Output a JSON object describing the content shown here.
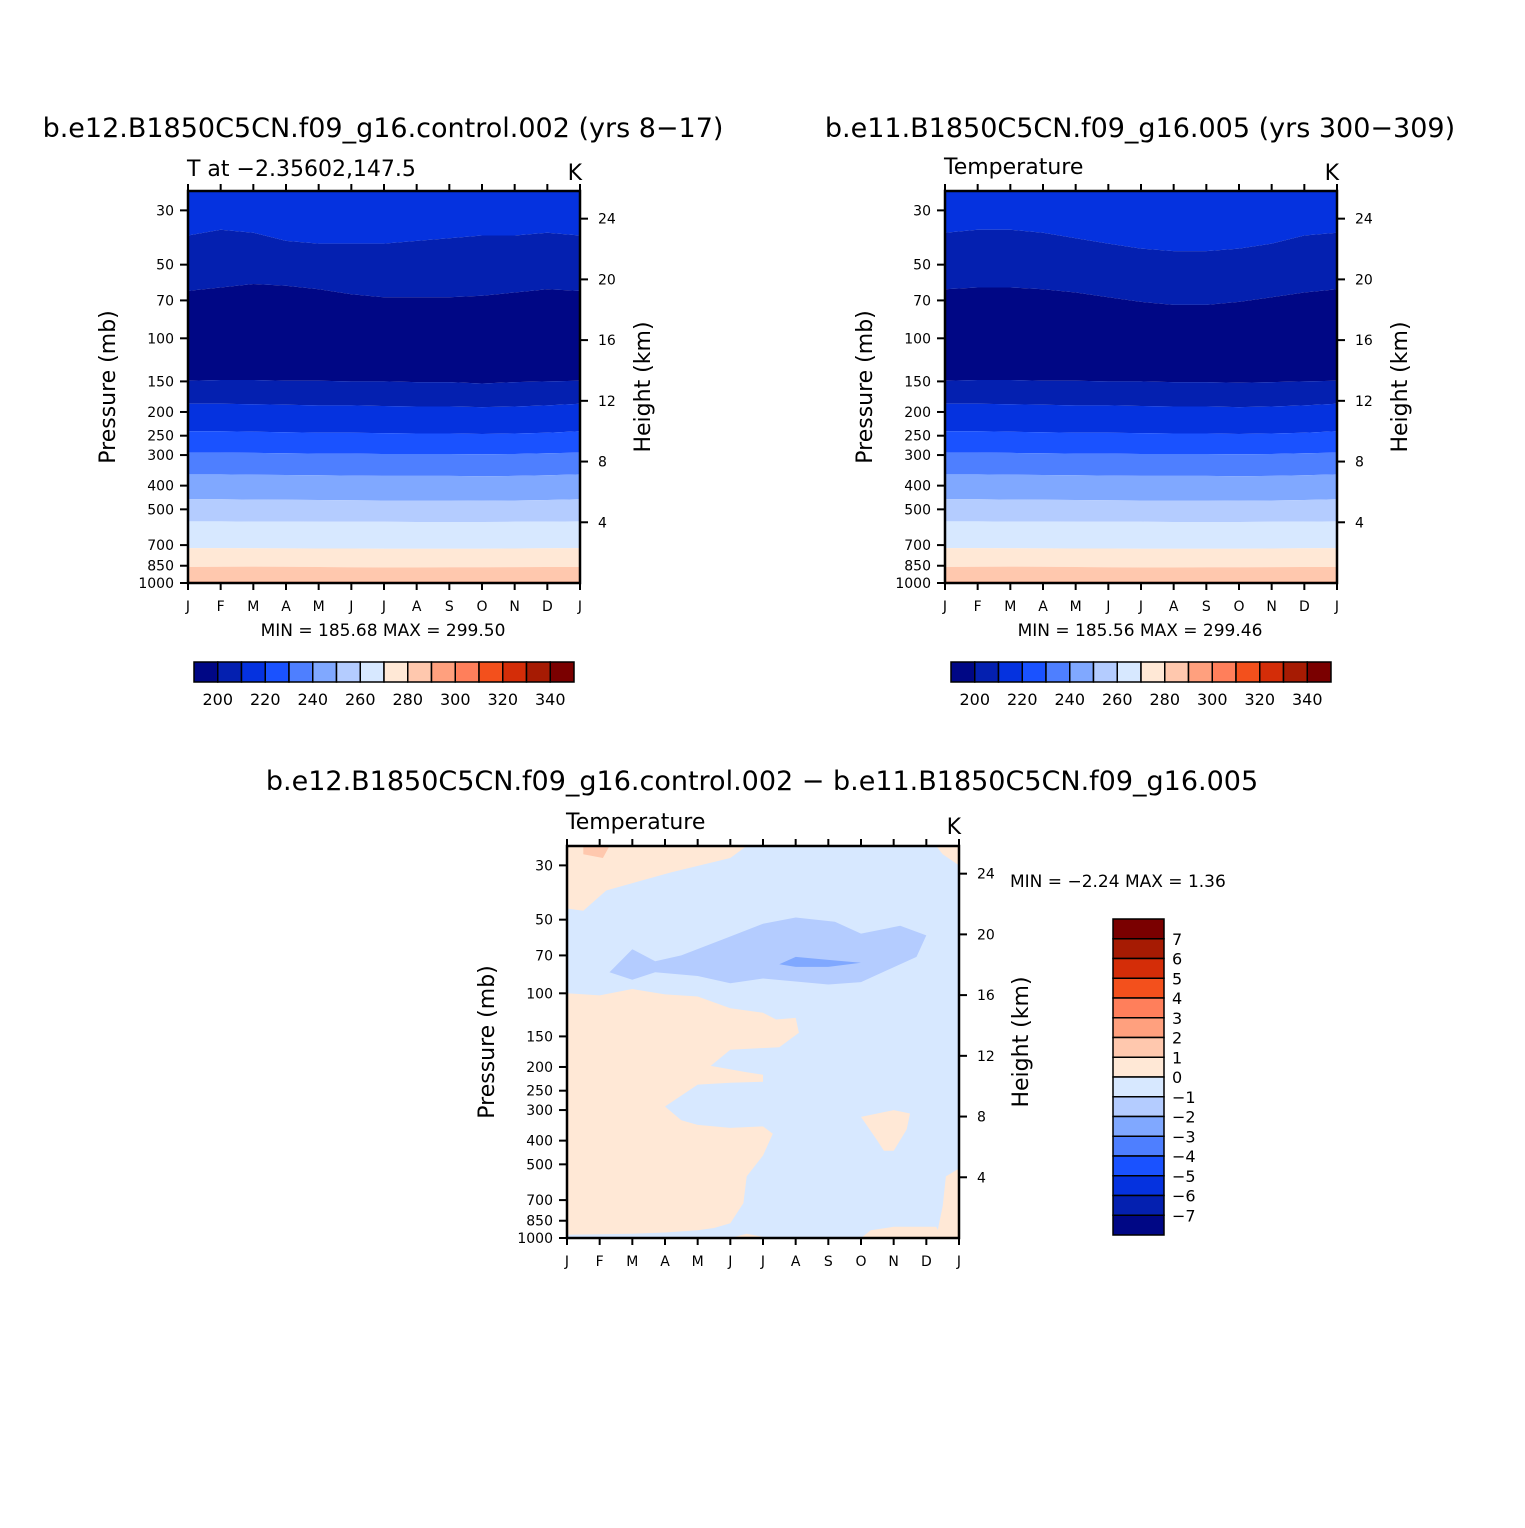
{
  "chart_data": [
    {
      "type": "heatmap",
      "title": "b.e12.B1850C5CN.f09_g16.control.002 (yrs 8-17)",
      "left_subtitle": "T at -2.35602,147.5",
      "units": "K",
      "xlabel": "",
      "ylabel": "Pressure (mb)",
      "right_ylabel": "Height (km)",
      "months": [
        "J",
        "F",
        "M",
        "A",
        "M",
        "J",
        "J",
        "A",
        "S",
        "O",
        "N",
        "D",
        "J"
      ],
      "pressure_ticks": [
        30,
        50,
        70,
        100,
        150,
        200,
        250,
        300,
        400,
        500,
        700,
        850,
        1000
      ],
      "height_ticks": [
        24,
        20,
        16,
        12,
        8,
        4
      ],
      "ylim": [
        1000,
        25
      ],
      "contour_levels": [
        195,
        200,
        205,
        210,
        215,
        220,
        225,
        230,
        235,
        240,
        245,
        250,
        255,
        260,
        265,
        270,
        275,
        280,
        285,
        290,
        295
      ],
      "band_boundaries_mb": [
        [
          38,
          36,
          37,
          40,
          41,
          41,
          41,
          40,
          39,
          38,
          38,
          37,
          38
        ],
        [
          64,
          62,
          60,
          61,
          63,
          66,
          68,
          68,
          68,
          67,
          65,
          63,
          64
        ],
        [
          149,
          148,
          148,
          149,
          149,
          150,
          150,
          151,
          151,
          153,
          151,
          150,
          149
        ],
        [
          185,
          185,
          186,
          187,
          188,
          188,
          189,
          190,
          190,
          191,
          190,
          188,
          185
        ],
        [
          240,
          240,
          241,
          242,
          243,
          243,
          244,
          245,
          245,
          246,
          245,
          243,
          240
        ],
        [
          293,
          293,
          294,
          295,
          296,
          296,
          297,
          297,
          297,
          298,
          297,
          295,
          293
        ],
        [
          360,
          360,
          361,
          362,
          363,
          364,
          365,
          365,
          365,
          366,
          365,
          363,
          360
        ],
        [
          455,
          455,
          456,
          457,
          458,
          459,
          460,
          460,
          460,
          461,
          460,
          458,
          455
        ],
        [
          560,
          560,
          561,
          561,
          562,
          562,
          562,
          563,
          563,
          563,
          562,
          561,
          560
        ],
        [
          720,
          720,
          721,
          722,
          723,
          723,
          724,
          724,
          724,
          724,
          723,
          721,
          720
        ],
        [
          860,
          858,
          857,
          858,
          860,
          862,
          864,
          864,
          863,
          862,
          861,
          860,
          860
        ],
        [
          985,
          985,
          985,
          985,
          985,
          985,
          985,
          985,
          985,
          985,
          985,
          985,
          985
        ]
      ],
      "band_colors": [
        "#0532df",
        "#0420b0",
        "#000785",
        "#0420b0",
        "#0532df",
        "#1a52ff",
        "#4e7fff",
        "#80a8ff",
        "#b4ccff",
        "#d7e8ff",
        "#ffe8d6",
        "#ffc8ae",
        "#ffa07e",
        "#ff7f5b"
      ],
      "stats": "MIN = 185.68 MAX = 299.50",
      "colorbar": {
        "labels": [
          "200",
          "220",
          "240",
          "260",
          "280",
          "300",
          "320",
          "340"
        ],
        "colors": [
          "#000785",
          "#0420b0",
          "#0532df",
          "#1a52ff",
          "#4e7fff",
          "#80a8ff",
          "#b4ccff",
          "#d7e8ff",
          "#ffe8d6",
          "#ffc8ae",
          "#ffa07e",
          "#ff7f5b",
          "#f3501c",
          "#d42d08",
          "#a61b03",
          "#7a0000"
        ]
      }
    },
    {
      "type": "heatmap",
      "title": "b.e11.B1850C5CN.f09_g16.005 (yrs 300-309)",
      "left_subtitle": "Temperature",
      "units": "K",
      "xlabel": "",
      "ylabel": "Pressure (mb)",
      "right_ylabel": "Height (km)",
      "months": [
        "J",
        "F",
        "M",
        "A",
        "M",
        "J",
        "J",
        "A",
        "S",
        "O",
        "N",
        "D",
        "J"
      ],
      "pressure_ticks": [
        30,
        50,
        70,
        100,
        150,
        200,
        250,
        300,
        400,
        500,
        700,
        850,
        1000
      ],
      "height_ticks": [
        24,
        20,
        16,
        12,
        8,
        4
      ],
      "ylim": [
        1000,
        25
      ],
      "contour_levels": [
        195,
        200,
        205,
        210,
        215,
        220,
        225,
        230,
        235,
        240,
        245,
        250,
        255,
        260,
        265,
        270,
        275,
        280,
        285,
        290,
        295
      ],
      "band_boundaries_mb": [
        [
          37,
          36,
          36,
          37,
          39,
          41,
          43,
          44,
          44,
          43,
          41,
          38,
          37
        ],
        [
          63,
          62,
          62,
          63,
          65,
          68,
          71,
          73,
          73,
          71,
          68,
          65,
          63
        ],
        [
          149,
          148,
          148,
          149,
          149,
          150,
          150,
          151,
          151,
          152,
          151,
          150,
          149
        ],
        [
          185,
          185,
          186,
          187,
          188,
          188,
          189,
          190,
          190,
          191,
          190,
          188,
          185
        ],
        [
          240,
          240,
          241,
          242,
          243,
          243,
          244,
          245,
          245,
          246,
          245,
          243,
          240
        ],
        [
          293,
          293,
          294,
          295,
          296,
          296,
          297,
          297,
          297,
          298,
          297,
          295,
          293
        ],
        [
          360,
          360,
          361,
          362,
          363,
          364,
          365,
          365,
          365,
          366,
          365,
          363,
          360
        ],
        [
          455,
          455,
          456,
          457,
          458,
          459,
          460,
          460,
          460,
          461,
          460,
          458,
          455
        ],
        [
          560,
          560,
          561,
          561,
          562,
          562,
          562,
          563,
          563,
          563,
          562,
          561,
          560
        ],
        [
          720,
          720,
          721,
          722,
          723,
          723,
          724,
          724,
          724,
          724,
          723,
          721,
          720
        ],
        [
          860,
          858,
          857,
          858,
          860,
          862,
          864,
          864,
          863,
          862,
          861,
          860,
          860
        ],
        [
          985,
          985,
          985,
          985,
          985,
          985,
          985,
          985,
          985,
          985,
          985,
          985,
          985
        ]
      ],
      "band_colors": [
        "#0532df",
        "#0420b0",
        "#000785",
        "#0420b0",
        "#0532df",
        "#1a52ff",
        "#4e7fff",
        "#80a8ff",
        "#b4ccff",
        "#d7e8ff",
        "#ffe8d6",
        "#ffc8ae",
        "#ffa07e",
        "#ff7f5b"
      ],
      "stats": "MIN = 185.56 MAX = 299.46",
      "colorbar": {
        "labels": [
          "200",
          "220",
          "240",
          "260",
          "280",
          "300",
          "320",
          "340"
        ],
        "colors": [
          "#000785",
          "#0420b0",
          "#0532df",
          "#1a52ff",
          "#4e7fff",
          "#80a8ff",
          "#b4ccff",
          "#d7e8ff",
          "#ffe8d6",
          "#ffc8ae",
          "#ffa07e",
          "#ff7f5b",
          "#f3501c",
          "#d42d08",
          "#a61b03",
          "#7a0000"
        ]
      }
    },
    {
      "type": "heatmap",
      "title": "b.e12.B1850C5CN.f09_g16.control.002 - b.e11.B1850C5CN.f09_g16.005",
      "left_subtitle": "Temperature",
      "units": "K",
      "xlabel": "",
      "ylabel": "Pressure (mb)",
      "right_ylabel": "Height (km)",
      "months": [
        "J",
        "F",
        "M",
        "A",
        "M",
        "J",
        "J",
        "A",
        "S",
        "O",
        "N",
        "D",
        "J"
      ],
      "pressure_ticks": [
        30,
        50,
        70,
        100,
        150,
        200,
        250,
        300,
        400,
        500,
        700,
        850,
        1000
      ],
      "height_ticks": [
        24,
        20,
        16,
        12,
        8,
        4
      ],
      "ylim": [
        1000,
        25
      ],
      "contour_levels": [
        -7,
        -6,
        -5,
        -4,
        -3,
        -2,
        -1,
        0,
        1,
        2,
        3,
        4,
        5,
        6,
        7
      ],
      "background_color": "#d7e8ff",
      "regions": [
        {
          "level_range": [
            0,
            1
          ],
          "color": "#ffe8d6",
          "points": [
            [
              0.0,
              25
            ],
            [
              11.3,
              25
            ],
            [
              11.5,
              27
            ],
            [
              12.0,
              30
            ],
            [
              12.0,
              25
            ]
          ]
        },
        {
          "level_range": [
            0,
            1
          ],
          "color": "#ffe8d6",
          "points": [
            [
              0.0,
              25
            ],
            [
              0.0,
              45
            ],
            [
              0.5,
              46
            ],
            [
              1.2,
              38
            ],
            [
              3.2,
              32
            ],
            [
              5.0,
              28
            ],
            [
              5.5,
              25
            ]
          ]
        },
        {
          "level_range": [
            1,
            2
          ],
          "color": "#ffc8ae",
          "points": [
            [
              0.5,
              25
            ],
            [
              0.5,
              27
            ],
            [
              1.1,
              28
            ],
            [
              1.3,
              25
            ]
          ]
        },
        {
          "level_range": [
            -2,
            -1
          ],
          "color": "#b4ccff",
          "points": [
            [
              1.3,
              82
            ],
            [
              2.0,
              66
            ],
            [
              2.7,
              74
            ],
            [
              3.5,
              70
            ],
            [
              4.8,
              60
            ],
            [
              6.0,
              52
            ],
            [
              7.0,
              49
            ],
            [
              8.2,
              51
            ],
            [
              9.0,
              57
            ],
            [
              10.2,
              53
            ],
            [
              11.0,
              58
            ],
            [
              10.7,
              71
            ],
            [
              9.0,
              90
            ],
            [
              8.0,
              92
            ],
            [
              6.0,
              87
            ],
            [
              5.0,
              91
            ],
            [
              4.0,
              85
            ],
            [
              2.7,
              82
            ],
            [
              2.0,
              88
            ]
          ]
        },
        {
          "level_range": [
            -3,
            -2
          ],
          "color": "#80a8ff",
          "points": [
            [
              6.5,
              76
            ],
            [
              7.0,
              71
            ],
            [
              8.0,
              73
            ],
            [
              9.0,
              75
            ],
            [
              8.0,
              78
            ],
            [
              7.0,
              78
            ]
          ]
        },
        {
          "level_range": [
            0,
            1
          ],
          "color": "#ffe8d6",
          "points": [
            [
              0.0,
              100
            ],
            [
              1.0,
              102
            ],
            [
              2.0,
              96
            ],
            [
              3.0,
              101
            ],
            [
              4.0,
              103
            ],
            [
              5.0,
              115
            ],
            [
              6.0,
              120
            ],
            [
              6.4,
              128
            ],
            [
              7.0,
              126
            ],
            [
              7.1,
              145
            ],
            [
              6.5,
              166
            ],
            [
              5.0,
              170
            ],
            [
              4.4,
              198
            ],
            [
              5.5,
              210
            ],
            [
              6.0,
              215
            ],
            [
              6.0,
              230
            ],
            [
              5.0,
              232
            ],
            [
              4.0,
              236
            ],
            [
              3.0,
              290
            ],
            [
              3.5,
              330
            ],
            [
              4.0,
              345
            ],
            [
              5.0,
              355
            ],
            [
              6.0,
              350
            ],
            [
              6.3,
              375
            ],
            [
              6.0,
              460
            ],
            [
              5.5,
              560
            ],
            [
              5.4,
              720
            ],
            [
              5.0,
              870
            ],
            [
              4.5,
              910
            ],
            [
              4.0,
              930
            ],
            [
              3.0,
              950
            ],
            [
              2.0,
              960
            ],
            [
              1.0,
              965
            ],
            [
              0.0,
              970
            ]
          ]
        },
        {
          "level_range": [
            0,
            1
          ],
          "color": "#ffe8d6",
          "points": [
            [
              9.0,
              320
            ],
            [
              10.0,
              300
            ],
            [
              10.5,
              310
            ],
            [
              10.4,
              360
            ],
            [
              10.0,
              440
            ],
            [
              9.7,
              440
            ],
            [
              9.5,
              400
            ]
          ]
        },
        {
          "level_range": [
            0,
            1
          ],
          "color": "#ffe8d6",
          "points": [
            [
              11.3,
              1000
            ],
            [
              11.5,
              740
            ],
            [
              11.6,
              560
            ],
            [
              12.0,
              520
            ],
            [
              12.0,
              1000
            ]
          ]
        },
        {
          "level_range": [
            0,
            1
          ],
          "color": "#ffe8d6",
          "points": [
            [
              9.0,
              1000
            ],
            [
              9.3,
              930
            ],
            [
              10.0,
              900
            ],
            [
              11.3,
              900
            ],
            [
              11.5,
              1000
            ]
          ]
        },
        {
          "level_range": [
            0,
            1
          ],
          "color": "#ffe8d6",
          "points": [
            [
              5.0,
              1000
            ],
            [
              5.5,
              960
            ],
            [
              6.0,
              990
            ],
            [
              6.2,
              1000
            ]
          ]
        }
      ],
      "stats": "MIN = -2.24 MAX = 1.36",
      "colorbar": {
        "labels": [
          "7",
          "6",
          "5",
          "4",
          "3",
          "2",
          "1",
          "0",
          "-1",
          "-2",
          "-3",
          "-4",
          "-5",
          "-6",
          "-7"
        ],
        "colors": [
          "#7a0000",
          "#a61b03",
          "#d42d08",
          "#f3501c",
          "#ff7f5b",
          "#ffa07e",
          "#ffc8ae",
          "#ffe8d6",
          "#d7e8ff",
          "#b4ccff",
          "#80a8ff",
          "#4e7fff",
          "#1a52ff",
          "#0532df",
          "#0420b0",
          "#000785"
        ]
      }
    }
  ]
}
